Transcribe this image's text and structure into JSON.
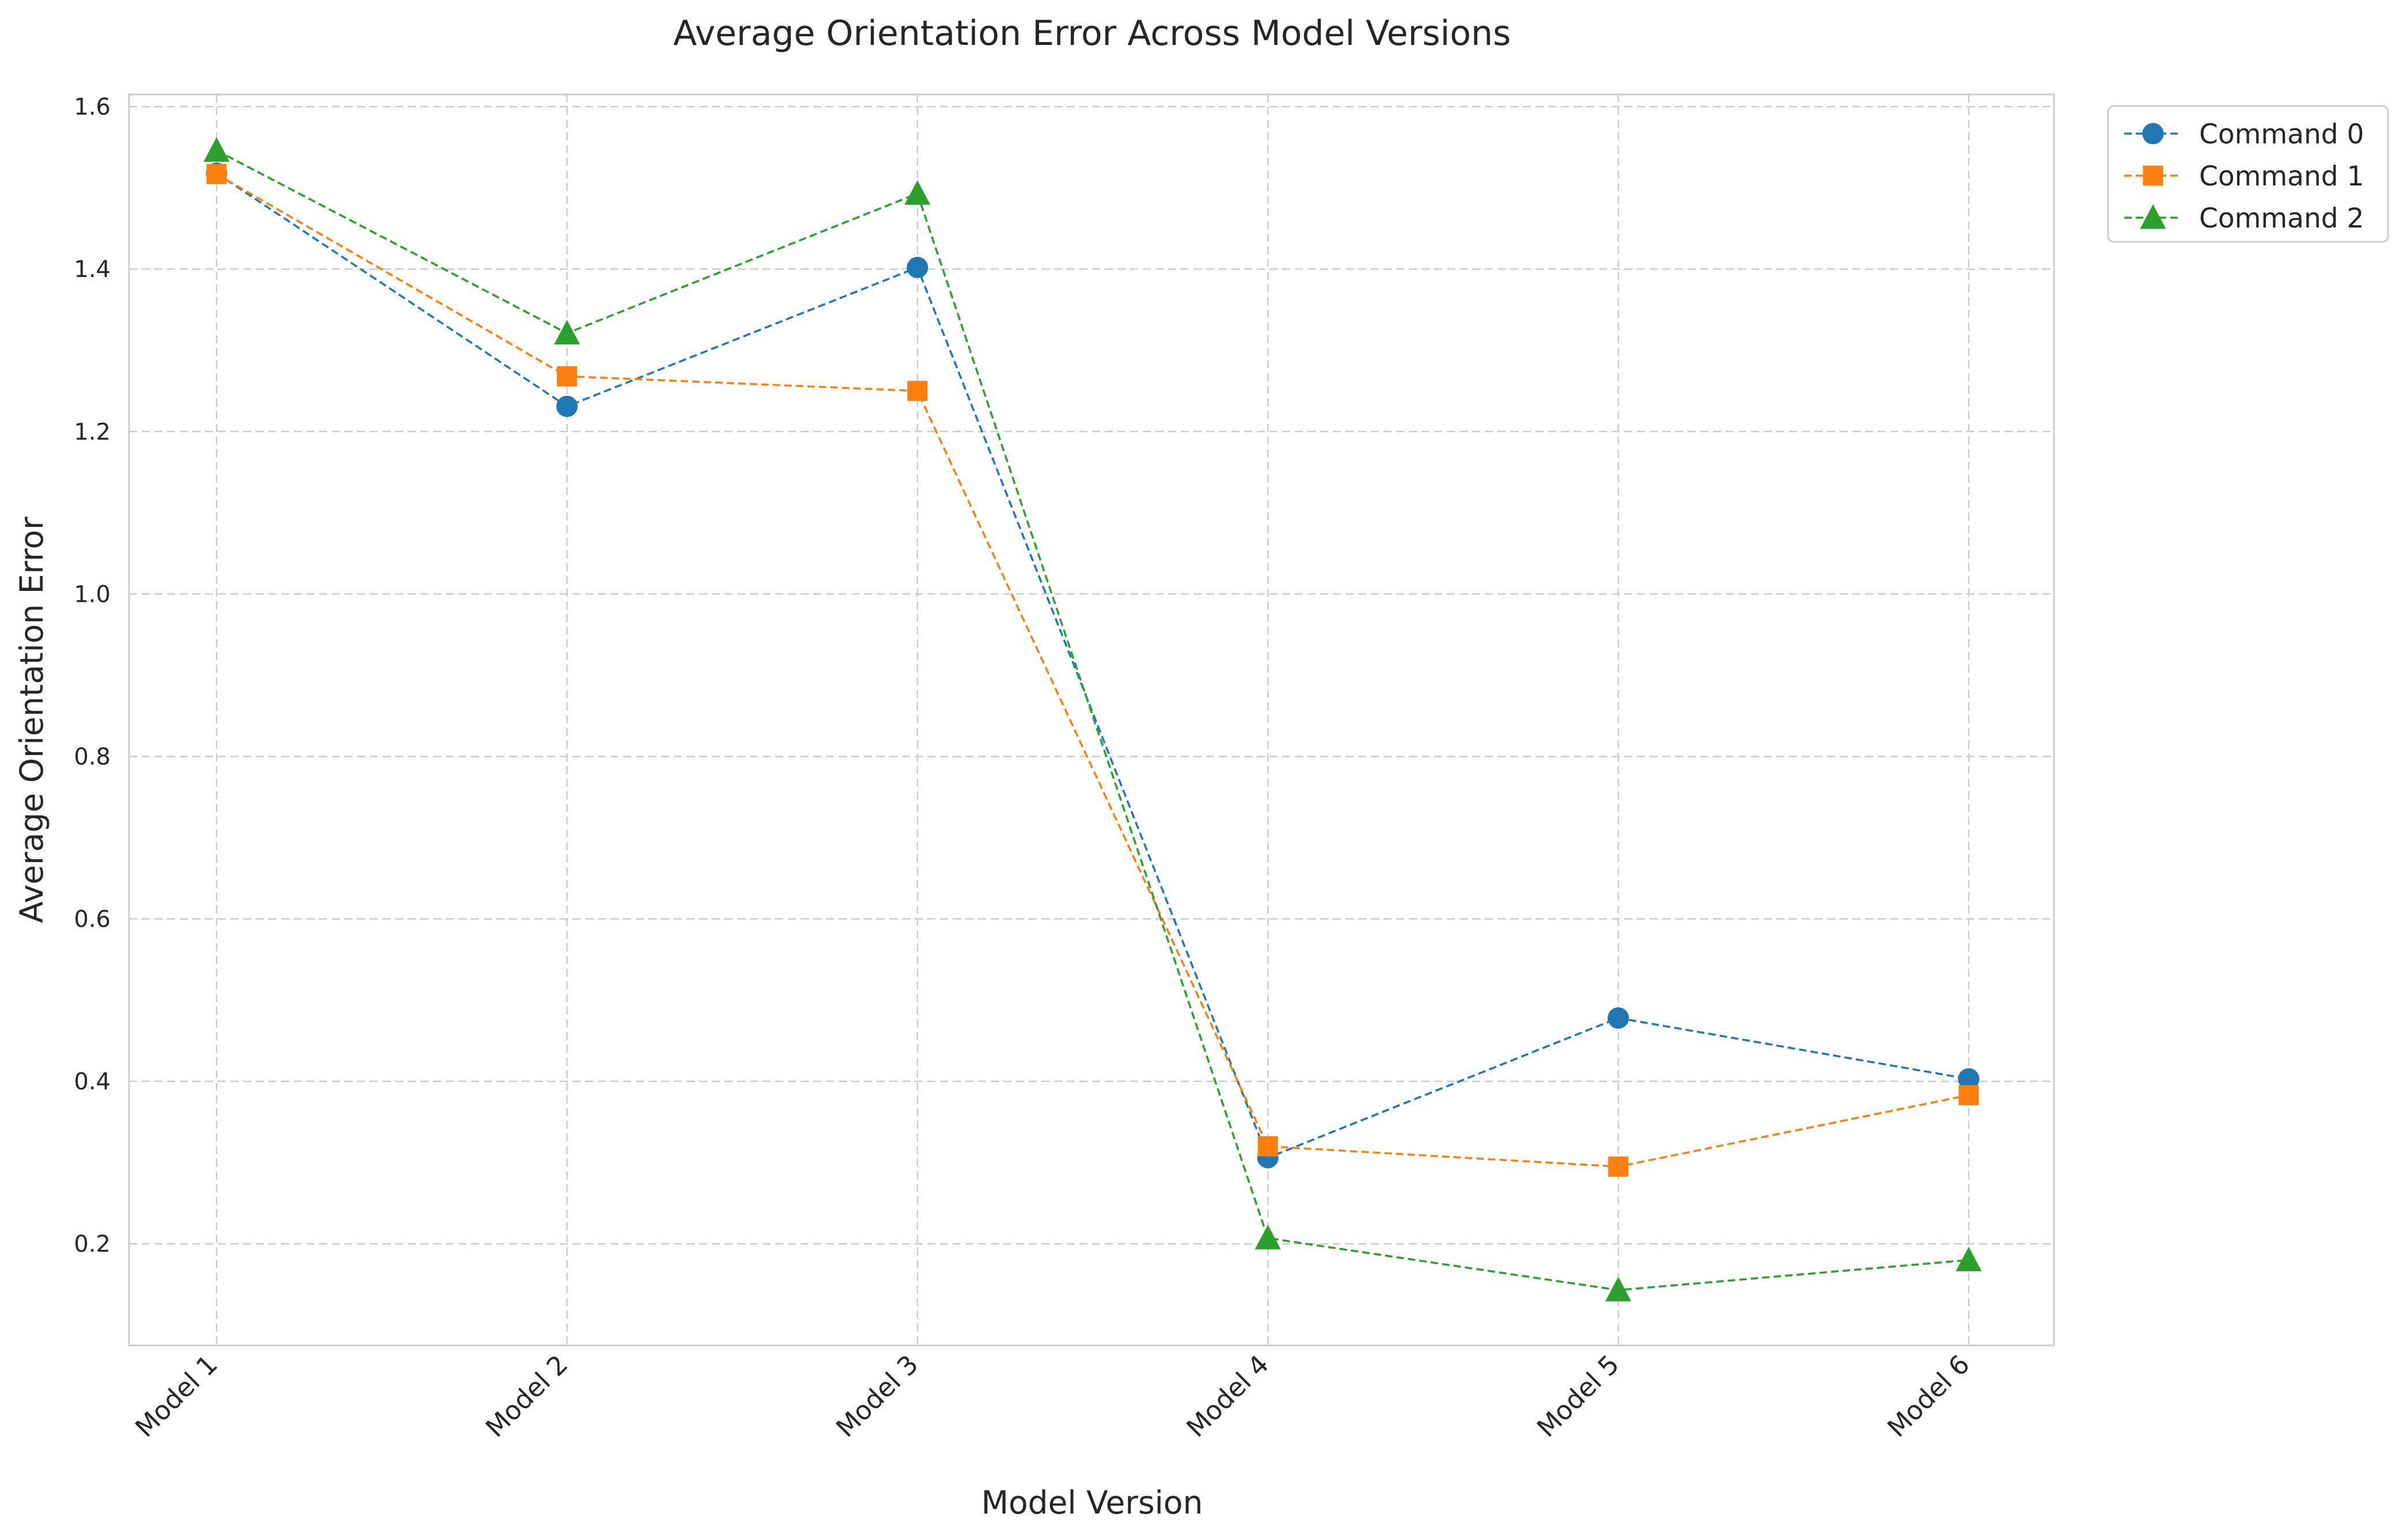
{
  "chart_data": {
    "type": "line",
    "title": "Average Orientation Error Across Model Versions",
    "xlabel": "Model Version",
    "ylabel": "Average Orientation Error",
    "categories": [
      "Model 1",
      "Model 2",
      "Model 3",
      "Model 4",
      "Model 5",
      "Model 6"
    ],
    "ylim": [
      0.075,
      1.615
    ],
    "yticks": [
      "0.2",
      "0.4",
      "0.6",
      "0.8",
      "1.0",
      "1.2",
      "1.4",
      "1.6"
    ],
    "grid": true,
    "grid_style": "dashed",
    "line_style": "dashed",
    "legend_position": "outside-top-right",
    "series": [
      {
        "name": "Command 0",
        "color": "#1f77b4",
        "marker": "circle",
        "values": [
          1.518,
          1.231,
          1.402,
          0.306,
          0.478,
          0.403
        ]
      },
      {
        "name": "Command 1",
        "color": "#ff7f0e",
        "marker": "square",
        "values": [
          1.517,
          1.268,
          1.25,
          0.32,
          0.295,
          0.383
        ]
      },
      {
        "name": "Command 2",
        "color": "#2ca02c",
        "marker": "triangle",
        "values": [
          1.546,
          1.321,
          1.493,
          0.207,
          0.143,
          0.18
        ]
      }
    ]
  }
}
